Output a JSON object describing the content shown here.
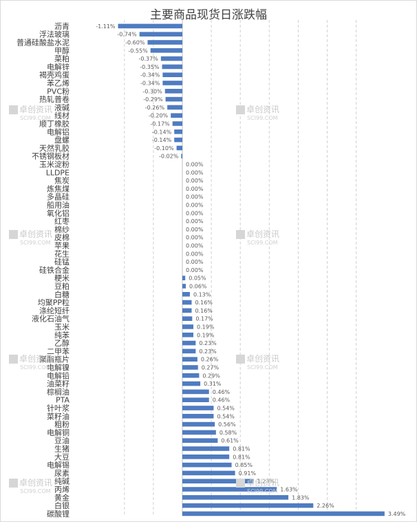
{
  "chart_data": {
    "type": "bar",
    "orientation": "horizontal",
    "title": "主要商品现货日涨跌幅",
    "bar_color": "#4f7cc1",
    "grid": "dashed-vertical",
    "categories": [
      "沥青",
      "浮法玻璃",
      "普通硅酸盐水泥",
      "甲醇",
      "菜粕",
      "电解锌",
      "褐壳鸡蛋",
      "苯乙烯",
      "PVC粉",
      "热轧普卷",
      "液碱",
      "线材",
      "顺丁橡胶",
      "电解铝",
      "盘螺",
      "天然乳胶",
      "不锈钢板材",
      "玉米淀粉",
      "LLDPE",
      "焦炭",
      "炼焦煤",
      "多晶硅",
      "船用油",
      "氧化铝",
      "红枣",
      "棉纱",
      "皮棉",
      "苹果",
      "花生",
      "硅锰",
      "硅铁合金",
      "粳米",
      "豆粕",
      "白糖",
      "均聚PP粒",
      "涤纶短纤",
      "液化石油气",
      "玉米",
      "纯苯",
      "乙醇",
      "二甲苯",
      "聚酯瓶片",
      "电解镍",
      "电解铅",
      "油菜籽",
      "棕榈油",
      "PTA",
      "针叶浆",
      "菜籽油",
      "粗粉",
      "电解铜",
      "豆油",
      "生猪",
      "大豆",
      "电解锡",
      "尿素",
      "纯碱",
      "丙烯",
      "黄金",
      "白银",
      "碳酸锂"
    ],
    "values": [
      -1.11,
      -0.74,
      -0.6,
      -0.55,
      -0.37,
      -0.35,
      -0.34,
      -0.34,
      -0.3,
      -0.29,
      -0.26,
      -0.2,
      -0.17,
      -0.14,
      -0.14,
      -0.1,
      -0.02,
      0.0,
      0.0,
      0.0,
      0.0,
      0.0,
      0.0,
      0.0,
      0.0,
      0.0,
      0.0,
      0.0,
      0.0,
      0.0,
      0.0,
      0.05,
      0.06,
      0.13,
      0.16,
      0.16,
      0.17,
      0.19,
      0.19,
      0.23,
      0.23,
      0.26,
      0.27,
      0.29,
      0.31,
      0.46,
      0.46,
      0.54,
      0.54,
      0.56,
      0.58,
      0.61,
      0.81,
      0.81,
      0.85,
      0.91,
      1.23,
      1.63,
      1.83,
      2.26,
      3.49
    ],
    "data_labels": [
      "-1.11%",
      "-0.74%",
      "-0.60%",
      "-0.55%",
      "-0.37%",
      "-0.35%",
      "-0.34%",
      "-0.34%",
      "-0.30%",
      "-0.29%",
      "-0.26%",
      "-0.20%",
      "-0.17%",
      "-0.14%",
      "-0.14%",
      "-0.10%",
      "-0.02%",
      "0.00%",
      "0.00%",
      "0.00%",
      "0.00%",
      "0.00%",
      "0.00%",
      "0.00%",
      "0.00%",
      "0.00%",
      "0.00%",
      "0.00%",
      "0.00%",
      "0.00%",
      "0.00%",
      "0.05%",
      "0.06%",
      "0.13%",
      "0.16%",
      "0.16%",
      "0.17%",
      "0.19%",
      "0.19%",
      "0.23%",
      "0.23%",
      "0.26%",
      "0.27%",
      "0.29%",
      "0.31%",
      "0.46%",
      "0.46%",
      "0.54%",
      "0.54%",
      "0.56%",
      "0.58%",
      "0.61%",
      "0.81%",
      "0.81%",
      "0.85%",
      "0.91%",
      "1.23%",
      "1.63%",
      "1.83%",
      "2.26%",
      "3.49%"
    ],
    "xlim": [
      -1.5,
      3.5
    ],
    "gridlines": [
      -1.0,
      -0.5,
      0.0,
      0.5,
      1.0,
      1.5,
      2.0,
      2.5,
      3.0
    ]
  },
  "watermark": {
    "brand": "卓创资讯",
    "domain": "SCI99.COM"
  }
}
